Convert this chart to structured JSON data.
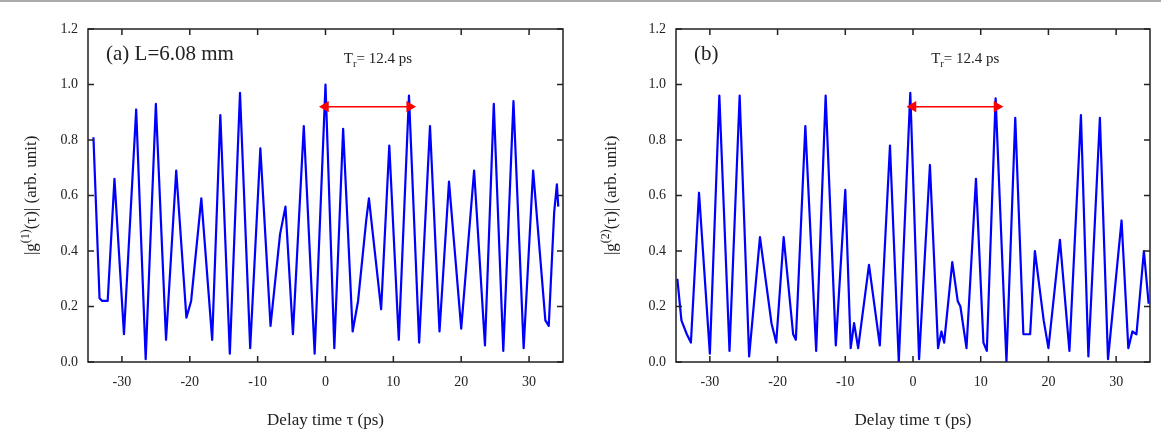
{
  "chart_data": [
    {
      "type": "line",
      "title": "(a)  L=6.08 mm",
      "xlabel": "Delay time τ (ps)",
      "ylabel": "|g$^{(1)}$(τ)|  (arb. unit)",
      "xlim": [
        -35,
        35
      ],
      "xticks": [
        -30,
        -20,
        -10,
        0,
        10,
        20,
        30
      ],
      "ylim": [
        0,
        1.2
      ],
      "yticks": [
        {
          "value": 0,
          "label": "0.0"
        },
        {
          "value": 0.2,
          "label": "0.2"
        },
        {
          "value": 0.4,
          "label": "0.4"
        },
        {
          "value": 0.6,
          "label": "0.6"
        },
        {
          "value": 0.8,
          "label": "0.8"
        },
        {
          "value": 1,
          "label": "1.0"
        },
        {
          "value": 1.2,
          "label": "1.2"
        }
      ],
      "annotations": [
        "T$_{r}$= 12.4 ps"
      ],
      "series": [
        {
          "color": "#0000ff",
          "marker": "none",
          "x": [
            -34.2,
            -33.3,
            -32.9,
            -32.1,
            -31.1,
            -29.7,
            -27.9,
            -26.5,
            -25.0,
            -23.5,
            -22.0,
            -20.5,
            -19.8,
            -18.3,
            -16.7,
            -15.5,
            -14.1,
            -12.6,
            -11.1,
            -9.6,
            -8.1,
            -6.7,
            -5.9,
            -4.8,
            -3.2,
            -1.6,
            0,
            1.3,
            2.6,
            4.0,
            4.8,
            6.0,
            6.4,
            8.2,
            9.4,
            10.8,
            12.3,
            13.8,
            15.4,
            16.8,
            18.2,
            20.0,
            21.9,
            23.5,
            24.8,
            26.2,
            27.7,
            29.2,
            30.6,
            32.4,
            32.9,
            33.7,
            34.1,
            34.3
          ],
          "values": [
            0.81,
            0.23,
            0.22,
            0.22,
            0.66,
            0.1,
            0.91,
            0.01,
            0.93,
            0.08,
            0.69,
            0.16,
            0.22,
            0.59,
            0.08,
            0.89,
            0.03,
            0.97,
            0.05,
            0.77,
            0.13,
            0.46,
            0.56,
            0.1,
            0.85,
            0.03,
            1.0,
            0.05,
            0.84,
            0.11,
            0.22,
            0.51,
            0.59,
            0.19,
            0.78,
            0.08,
            0.96,
            0.07,
            0.85,
            0.11,
            0.65,
            0.12,
            0.69,
            0.06,
            0.93,
            0.04,
            0.94,
            0.05,
            0.69,
            0.15,
            0.13,
            0.54,
            0.64,
            0.56
          ]
        },
        {
          "type": "line",
          "color": "#ff0000",
          "marker": "triangle",
          "x": [
            0,
            12.4
          ],
          "values": [
            0.92,
            0.92
          ]
        }
      ]
    },
    {
      "type": "line",
      "title": "(b)",
      "xlabel": "Delay time τ (ps)",
      "ylabel": "|g$^{(2)}$(τ)|  (arb. unit)",
      "xlim": [
        -35,
        35
      ],
      "xticks": [
        -30,
        -20,
        -10,
        0,
        10,
        20,
        30
      ],
      "ylim": [
        0,
        1.2
      ],
      "yticks": [
        {
          "value": 0,
          "label": "0.0"
        },
        {
          "value": 0.2,
          "label": "0.2"
        },
        {
          "value": 0.4,
          "label": "0.4"
        },
        {
          "value": 0.6,
          "label": "0.6"
        },
        {
          "value": 0.8,
          "label": "0.8"
        },
        {
          "value": 1,
          "label": "1.0"
        },
        {
          "value": 1.2,
          "label": "1.2"
        }
      ],
      "annotations": [
        "T$_{r}$= 12.4 ps"
      ],
      "series": [
        {
          "color": "#0000ff",
          "marker": "none",
          "x": [
            -34.8,
            -34.2,
            -33.4,
            -32.8,
            -31.6,
            -30.0,
            -28.6,
            -27.1,
            -25.6,
            -24.2,
            -22.6,
            -20.9,
            -20.2,
            -19.1,
            -17.7,
            -17.3,
            -15.9,
            -14.3,
            -12.9,
            -11.4,
            -10.0,
            -9.2,
            -8.7,
            -8.1,
            -6.5,
            -4.9,
            -3.4,
            -2.1,
            -0.4,
            0.9,
            2.5,
            3.7,
            4.2,
            4.6,
            5.8,
            6.6,
            7.0,
            7.9,
            9.3,
            10.4,
            10.9,
            12.2,
            13.8,
            15.1,
            16.3,
            17.3,
            18.0,
            19.3,
            20.0,
            21.7,
            23.1,
            24.8,
            25.9,
            27.6,
            28.8,
            30.8,
            31.8,
            32.4,
            33.0,
            34.1,
            34.8
          ],
          "values": [
            0.3,
            0.15,
            0.1,
            0.07,
            0.61,
            0.03,
            0.96,
            0.04,
            0.96,
            0.02,
            0.45,
            0.14,
            0.07,
            0.45,
            0.1,
            0.08,
            0.85,
            0.04,
            0.96,
            0.06,
            0.62,
            0.05,
            0.14,
            0.05,
            0.35,
            0.06,
            0.78,
            0.0,
            0.97,
            0.01,
            0.71,
            0.05,
            0.11,
            0.07,
            0.36,
            0.22,
            0.2,
            0.05,
            0.66,
            0.07,
            0.04,
            0.95,
            0.0,
            0.88,
            0.1,
            0.1,
            0.4,
            0.15,
            0.05,
            0.44,
            0.04,
            0.89,
            0.02,
            0.88,
            0.01,
            0.51,
            0.05,
            0.11,
            0.1,
            0.4,
            0.21
          ]
        },
        {
          "type": "line",
          "color": "#ff0000",
          "marker": "triangle",
          "x": [
            0,
            12.4
          ],
          "values": [
            0.92,
            0.92
          ]
        }
      ]
    }
  ]
}
